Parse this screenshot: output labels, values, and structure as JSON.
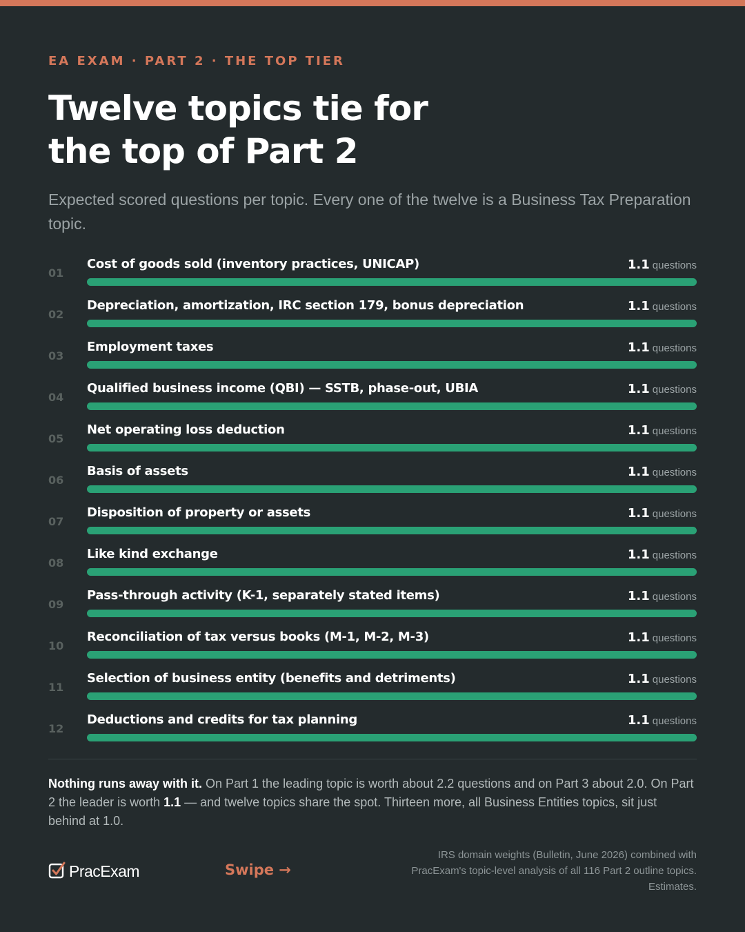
{
  "header": {
    "eyebrow": "EA EXAM · PART 2 · THE TOP TIER",
    "title_line1": "Twelve topics tie for",
    "title_line2": "the top of Part 2",
    "subtitle": "Expected scored questions per topic. Every one of the twelve is a Business Tax Preparation topic."
  },
  "colors": {
    "accent": "#d4775a",
    "bar": "#2aa175",
    "background": "#242b2d"
  },
  "chart_data": {
    "type": "bar",
    "orientation": "horizontal",
    "unit": "questions",
    "xlim": [
      0,
      1.1
    ],
    "categories": [
      "Cost of goods sold (inventory practices, UNICAP)",
      "Depreciation, amortization, IRC section 179, bonus depreciation",
      "Employment taxes",
      "Qualified business income (QBI) — SSTB, phase-out, UBIA",
      "Net operating loss deduction",
      "Basis of assets",
      "Disposition of property or assets",
      "Like kind exchange",
      "Pass-through activity (K-1, separately stated items)",
      "Reconciliation of tax versus books (M-1, M-2, M-3)",
      "Selection of business entity (benefits and detriments)",
      "Deductions and credits for tax planning"
    ],
    "ranks": [
      "01",
      "02",
      "03",
      "04",
      "05",
      "06",
      "07",
      "08",
      "09",
      "10",
      "11",
      "12"
    ],
    "values": [
      1.1,
      1.1,
      1.1,
      1.1,
      1.1,
      1.1,
      1.1,
      1.1,
      1.1,
      1.1,
      1.1,
      1.1
    ]
  },
  "note": {
    "lead": "Nothing runs away with it.",
    "part1": " On Part 1 the leading topic is worth about 2.2 questions and on Part 3 about 2.0. On Part 2 the leader is worth ",
    "highlight": "1.1",
    "part2": " — and twelve topics share the spot. Thirteen more, all Business Entities topics, sit just behind at 1.0."
  },
  "footer": {
    "logo_text": "PracExam",
    "logo_icon": "check-icon",
    "swipe_label": "Swipe →",
    "source_line1": "IRS domain weights (Bulletin, June 2026) combined with",
    "source_line2": "PracExam's topic-level analysis of all 116 Part 2 outline topics.",
    "source_line3": "Estimates."
  }
}
